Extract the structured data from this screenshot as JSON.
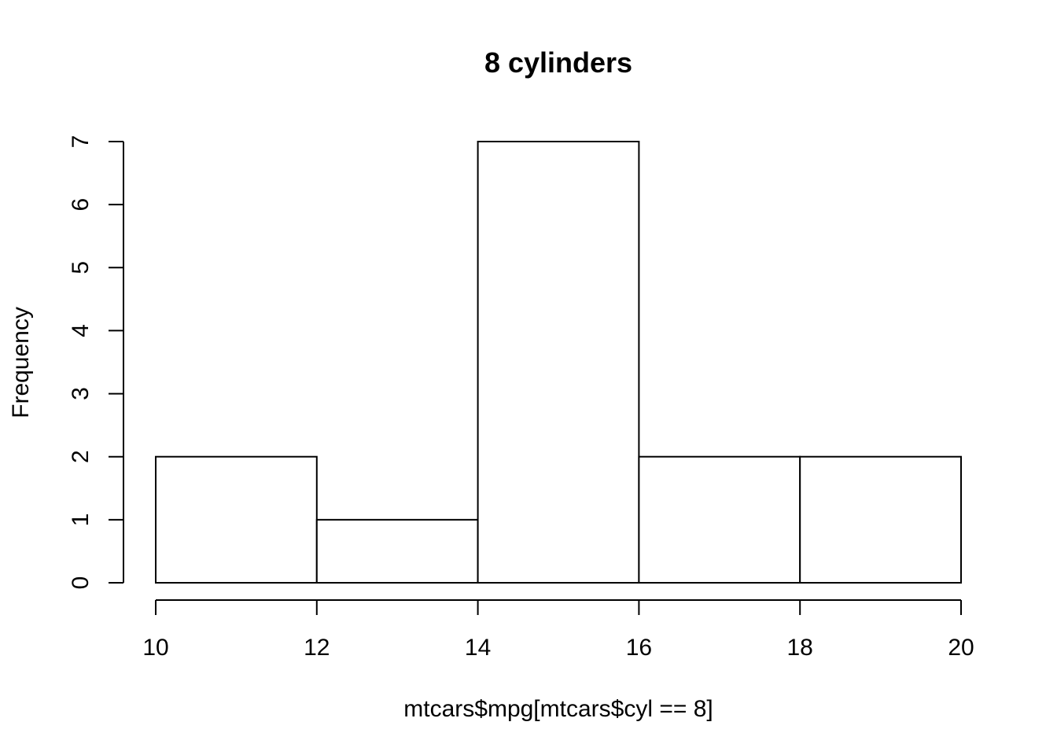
{
  "chart_data": {
    "type": "bar",
    "title": "8 cylinders",
    "xlabel": "mtcars$mpg[mtcars$cyl == 8]",
    "ylabel": "Frequency",
    "bins": [
      {
        "start": 10,
        "end": 12,
        "count": 2
      },
      {
        "start": 12,
        "end": 14,
        "count": 1
      },
      {
        "start": 14,
        "end": 16,
        "count": 7
      },
      {
        "start": 16,
        "end": 18,
        "count": 2
      },
      {
        "start": 18,
        "end": 20,
        "count": 2
      }
    ],
    "xlim": [
      10,
      20
    ],
    "ylim": [
      0,
      7
    ],
    "xticks": [
      10,
      12,
      14,
      16,
      18,
      20
    ],
    "yticks": [
      0,
      1,
      2,
      3,
      4,
      5,
      6,
      7
    ],
    "grid": false,
    "colors": {
      "bar_fill": "#ffffff",
      "bar_stroke": "#000000"
    }
  }
}
